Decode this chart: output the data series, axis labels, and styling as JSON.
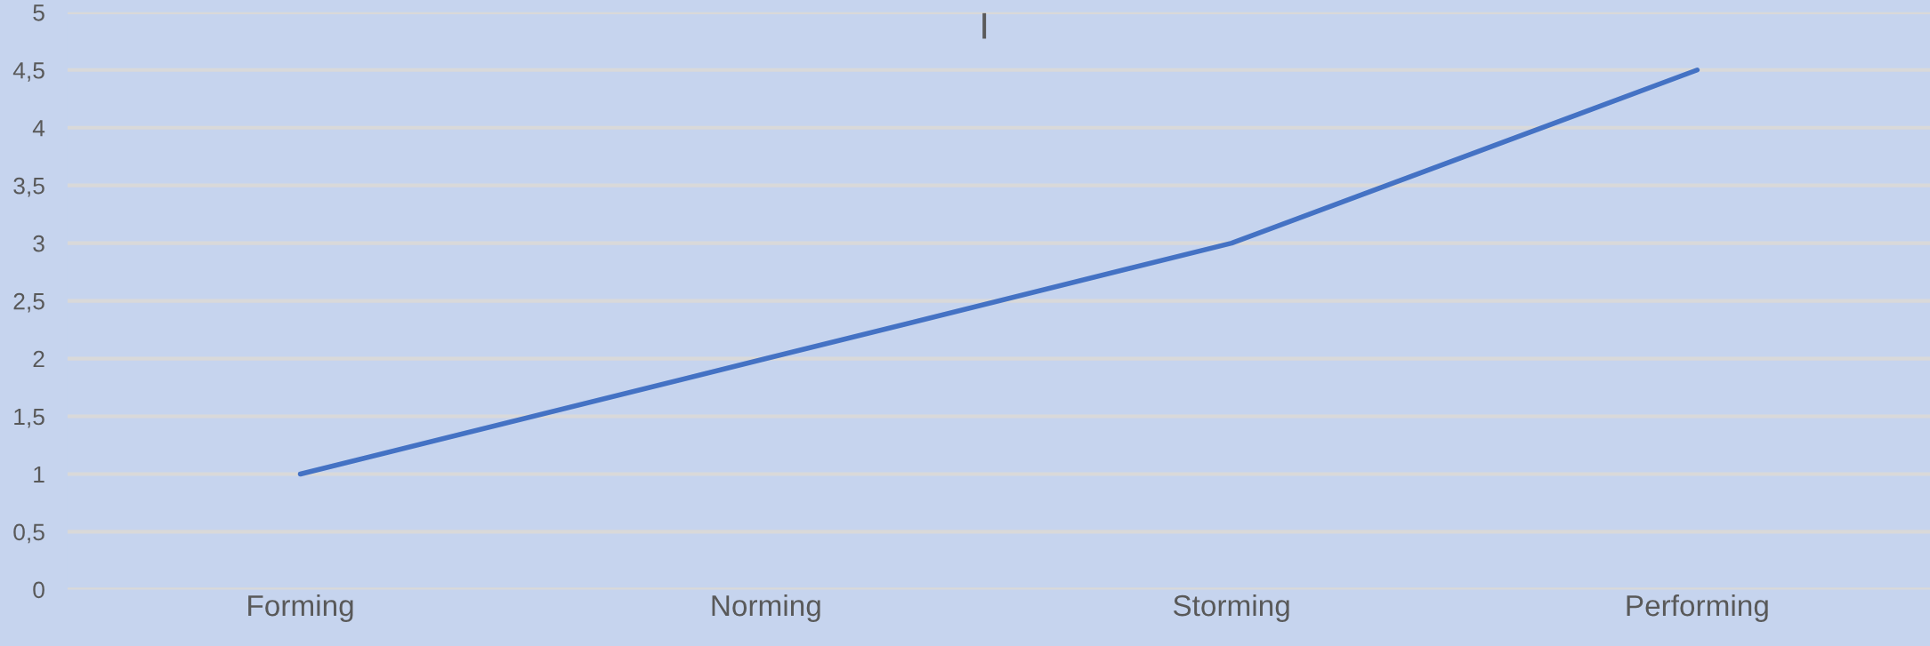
{
  "chart_data": {
    "type": "line",
    "title": "I",
    "categories": [
      "Forming",
      "Norming",
      "Storming",
      "Performing"
    ],
    "series": [
      {
        "color": "#4472c4",
        "values": [
          1,
          2,
          3,
          4.5
        ]
      }
    ],
    "ylim": [
      0,
      5
    ],
    "yticks": [
      0,
      {
        "value": 0.5,
        "label": "0,5"
      },
      1,
      {
        "value": 1.5,
        "label": "1,5"
      },
      2,
      {
        "value": 2.5,
        "label": "2,5"
      },
      3,
      {
        "value": 3.5,
        "label": "3,5"
      },
      4,
      {
        "value": 4.5,
        "label": "4,5"
      },
      5
    ],
    "grid": "y",
    "marker": "none",
    "line_style": "solid"
  }
}
